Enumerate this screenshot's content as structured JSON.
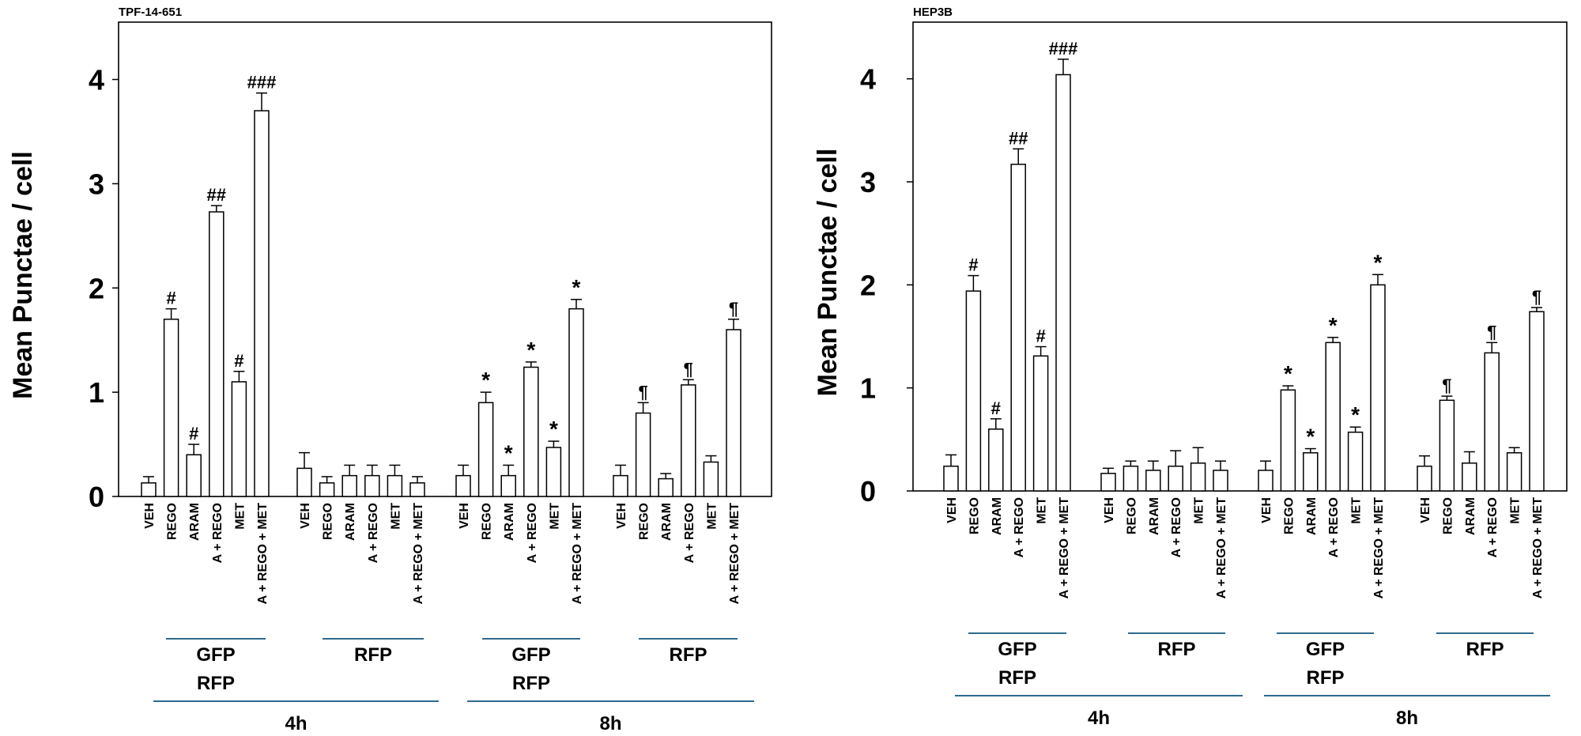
{
  "chart_data": [
    {
      "type": "bar",
      "title": "TPF-14-651",
      "ylabel": "Mean Punctae / cell",
      "ylim": [
        0,
        4.55
      ],
      "yticks": [
        "0",
        "1",
        "2",
        "3",
        "4"
      ],
      "grid": false,
      "categories": [
        "VEH",
        "REGO",
        "ARAM",
        "A + REGO",
        "MET",
        "A + REGO + MET"
      ],
      "groups": [
        {
          "time": "4h",
          "reporter": [
            "GFP",
            "RFP"
          ],
          "values": [
            0.13,
            1.7,
            0.4,
            2.73,
            1.1,
            3.7
          ],
          "errors": [
            0.06,
            0.1,
            0.1,
            0.06,
            0.1,
            0.17
          ],
          "annotations": [
            "",
            "#",
            "#",
            "##",
            "#",
            "###"
          ]
        },
        {
          "time": "4h",
          "reporter": [
            "RFP"
          ],
          "values": [
            0.27,
            0.13,
            0.2,
            0.2,
            0.2,
            0.13
          ],
          "errors": [
            0.15,
            0.06,
            0.1,
            0.1,
            0.1,
            0.06
          ],
          "annotations": [
            "",
            "",
            "",
            "",
            "",
            ""
          ]
        },
        {
          "time": "8h",
          "reporter": [
            "GFP",
            "RFP"
          ],
          "values": [
            0.2,
            0.9,
            0.2,
            1.24,
            0.47,
            1.8
          ],
          "errors": [
            0.1,
            0.1,
            0.1,
            0.05,
            0.06,
            0.09
          ],
          "annotations": [
            "",
            "*",
            "*",
            "*",
            "*",
            "*"
          ]
        },
        {
          "time": "8h",
          "reporter": [
            "RFP"
          ],
          "values": [
            0.2,
            0.8,
            0.17,
            1.07,
            0.33,
            1.6
          ],
          "errors": [
            0.1,
            0.1,
            0.05,
            0.05,
            0.06,
            0.1
          ],
          "annotations": [
            "",
            "¶",
            "",
            "¶",
            "",
            "¶"
          ]
        }
      ]
    },
    {
      "type": "bar",
      "title": "HEP3B",
      "ylabel": "Mean Punctae / cell",
      "ylim": [
        0,
        4.55
      ],
      "yticks": [
        "0",
        "1",
        "2",
        "3",
        "4"
      ],
      "grid": false,
      "categories": [
        "VEH",
        "REGO",
        "ARAM",
        "A + REGO",
        "MET",
        "A + REGO + MET"
      ],
      "groups": [
        {
          "time": "4h",
          "reporter": [
            "GFP",
            "RFP"
          ],
          "values": [
            0.24,
            1.94,
            0.6,
            3.17,
            1.31,
            4.04
          ],
          "errors": [
            0.11,
            0.15,
            0.1,
            0.15,
            0.09,
            0.15
          ],
          "annotations": [
            "",
            "#",
            "#",
            "##",
            "#",
            "###"
          ]
        },
        {
          "time": "4h",
          "reporter": [
            "RFP"
          ],
          "values": [
            0.17,
            0.24,
            0.2,
            0.24,
            0.27,
            0.2
          ],
          "errors": [
            0.05,
            0.05,
            0.09,
            0.15,
            0.15,
            0.09
          ],
          "annotations": [
            "",
            "",
            "",
            "",
            "",
            ""
          ]
        },
        {
          "time": "8h",
          "reporter": [
            "GFP",
            "RFP"
          ],
          "values": [
            0.2,
            0.98,
            0.37,
            1.44,
            0.57,
            2.0
          ],
          "errors": [
            0.09,
            0.04,
            0.04,
            0.05,
            0.05,
            0.1
          ],
          "annotations": [
            "",
            "*",
            "*",
            "*",
            "*",
            "*"
          ]
        },
        {
          "time": "8h",
          "reporter": [
            "RFP"
          ],
          "values": [
            0.24,
            0.88,
            0.27,
            1.34,
            0.37,
            1.74
          ],
          "errors": [
            0.1,
            0.04,
            0.11,
            0.1,
            0.05,
            0.04
          ],
          "annotations": [
            "",
            "¶",
            "",
            "¶",
            "",
            "¶"
          ]
        }
      ]
    }
  ],
  "colors": {
    "bar_fill": "#ffffff",
    "bar_stroke": "#000000",
    "group_line": "#2e6a8e"
  }
}
